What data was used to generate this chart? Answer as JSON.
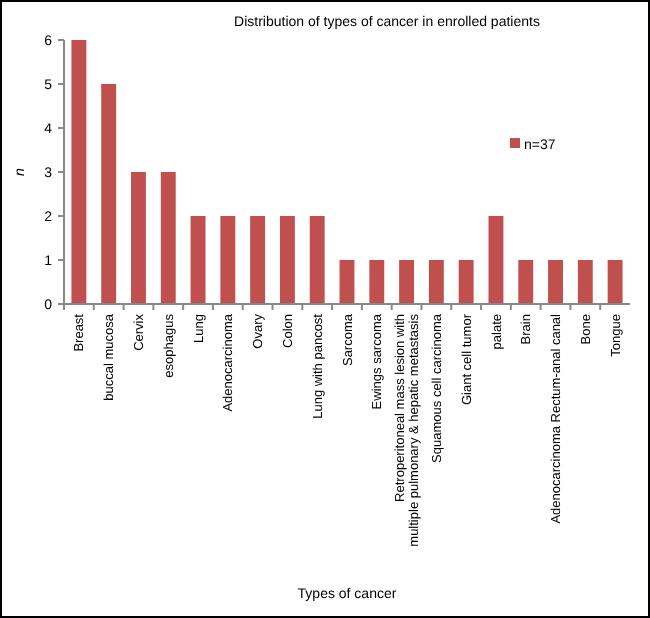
{
  "chart_data": {
    "type": "bar",
    "title": "Distribution of types of cancer in enrolled patients",
    "xlabel": "Types of cancer",
    "ylabel": "n",
    "categories": [
      "Breast",
      "buccal mucosa",
      "Cervix",
      "esophagus",
      "Lung",
      "Adenocarcinoma",
      "Ovary",
      "Colon",
      "Lung with pancost",
      "Sarcoma",
      "Ewings sarcoma",
      "Retroperitoneal mass lesion with multiple pulmonary & hepatic metastasis",
      "Squamous cell carcinoma",
      "Giant cell tumor",
      "palate",
      "Brain",
      "Adenocarcinoma Rectum-anal canal",
      "Bone",
      "Tongue"
    ],
    "series": [
      {
        "name": "n=37",
        "color": "#c0504d",
        "values": [
          6,
          5,
          3,
          3,
          2,
          2,
          2,
          2,
          2,
          1,
          1,
          1,
          1,
          1,
          2,
          1,
          1,
          1,
          1
        ]
      }
    ],
    "ylim": [
      0,
      6
    ],
    "yticks": [
      0,
      1,
      2,
      3,
      4,
      5,
      6
    ],
    "grid": false,
    "legend": "right"
  }
}
